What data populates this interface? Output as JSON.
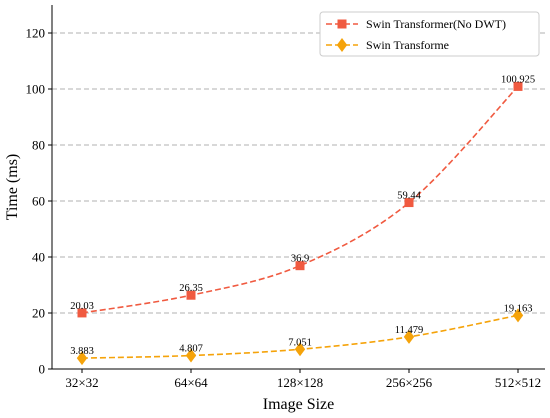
{
  "chart_data": {
    "type": "line",
    "title": "",
    "xlabel": "Image Size",
    "ylabel": "Time (ms)",
    "categories": [
      "32×32",
      "64×64",
      "128×128",
      "256×256",
      "512×512"
    ],
    "ylim": [
      0,
      130
    ],
    "yticks": [
      0,
      20,
      40,
      60,
      80,
      100,
      120
    ],
    "grid": "y-dashed",
    "legend_position": "top-right",
    "series": [
      {
        "name": "Swin Transformer(No DWT)",
        "color": "#f05a40",
        "marker": "square",
        "line_style": "dashed",
        "values": [
          20.03,
          26.35,
          36.9,
          59.44,
          100.925
        ],
        "labels": [
          "20.03",
          "26.35",
          "36.9",
          "59.44",
          "100.925"
        ]
      },
      {
        "name": "Swin Transforme",
        "color": "#f5a30a",
        "marker": "diamond",
        "line_style": "dashed",
        "values": [
          3.883,
          4.807,
          7.051,
          11.479,
          19.163
        ],
        "labels": [
          "3.883",
          "4.807",
          "7.051",
          "11.479",
          "19.163"
        ]
      }
    ]
  }
}
